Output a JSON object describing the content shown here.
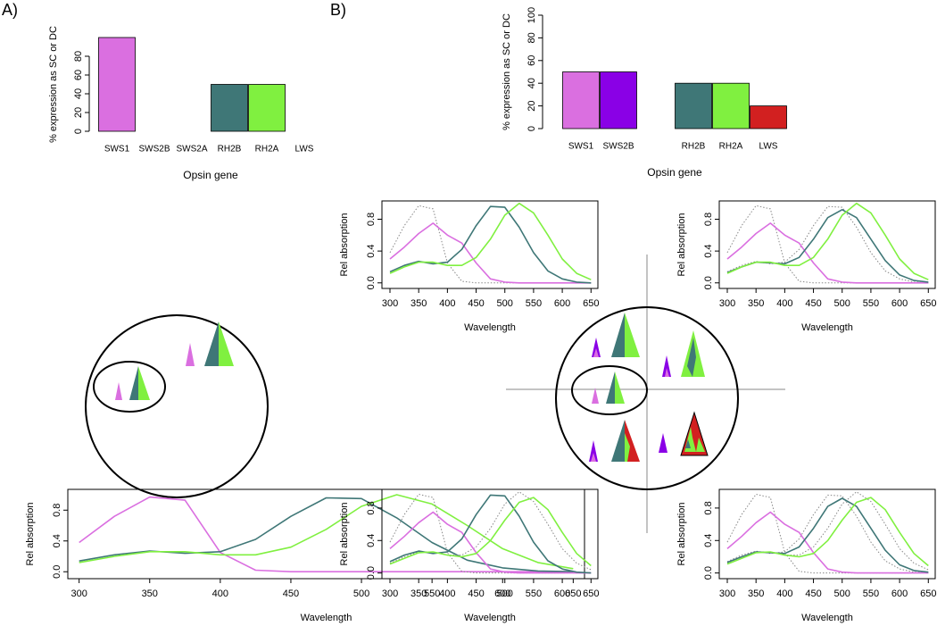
{
  "panels": [
    "A)",
    "B)"
  ],
  "chart_data": [
    {
      "type": "bar",
      "ylabel": "% expression as SC or DC",
      "xlabel": "Opsin gene",
      "categories": [
        "SWS1",
        "SWS2B",
        "SWS2A",
        "RH2B",
        "RH2A",
        "LWS"
      ],
      "values": [
        100,
        0,
        0,
        50,
        50,
        0
      ],
      "colors": [
        "#da6fe0",
        "#8a00e6",
        "#888888",
        "#3f7777",
        "#80f040",
        "#d22020"
      ],
      "ylim": [
        0,
        100
      ],
      "yticks": [
        0,
        20,
        40,
        60,
        80
      ]
    },
    {
      "type": "bar",
      "ylabel": "% expression as SC or DC",
      "xlabel": "Opsin gene",
      "categories": [
        "SWS1",
        "SWS2B",
        null,
        "RH2B",
        "RH2A",
        "LWS"
      ],
      "values": [
        50,
        50,
        0,
        40,
        40,
        20
      ],
      "colors": [
        "#da6fe0",
        "#8a00e6",
        "#888888",
        "#3f7777",
        "#80f040",
        "#d22020"
      ],
      "ylim": [
        0,
        100
      ],
      "yticks": [
        0,
        20,
        40,
        60,
        80,
        100
      ]
    },
    {
      "type": "line",
      "xlabel": "Wavelength",
      "ylabel": "Rel absorption",
      "x": [
        300,
        325,
        350,
        375,
        400,
        425,
        450,
        475,
        500,
        525,
        550,
        575,
        600,
        625,
        650
      ],
      "xlim": [
        292,
        658
      ],
      "xticks": [
        300,
        350,
        400,
        450,
        500,
        550,
        600,
        650
      ],
      "ylim": [
        -0.09,
        1.07
      ],
      "yticks": [
        {
          "value": 0,
          "label": "0.0"
        },
        0.4,
        0.8
      ],
      "series": [
        {
          "color": "#da6fe0",
          "style": "solid",
          "values": [
            0.38,
            0.72,
            0.97,
            0.93,
            0.25,
            0.02,
            0,
            0,
            0,
            0,
            0,
            0,
            0,
            0,
            0
          ]
        },
        {
          "color": "#3f7777",
          "style": "solid",
          "values": [
            0.14,
            0.22,
            0.27,
            0.24,
            0.26,
            0.42,
            0.72,
            0.96,
            0.95,
            0.7,
            0.38,
            0.15,
            0.05,
            0.01,
            0
          ]
        },
        {
          "color": "#80f040",
          "style": "solid",
          "values": [
            0.12,
            0.2,
            0.26,
            0.26,
            0.22,
            0.22,
            0.32,
            0.55,
            0.85,
            1.0,
            0.88,
            0.6,
            0.3,
            0.12,
            0.04
          ]
        }
      ]
    },
    {
      "type": "line",
      "xlabel": "Wavelength",
      "ylabel": "Rel absorption",
      "x": [
        300,
        325,
        350,
        375,
        400,
        425,
        450,
        475,
        500,
        525,
        550,
        575,
        600,
        625,
        650
      ],
      "xlim": [
        286,
        662
      ],
      "xticks": [
        300,
        350,
        400,
        450,
        500,
        550,
        600,
        650
      ],
      "ylim": [
        -0.07,
        1.03
      ],
      "yticks": [
        {
          "value": 0,
          "label": "0.0"
        },
        0.4,
        0.8
      ],
      "series": [
        {
          "color": "#888888",
          "style": "dotted",
          "values": [
            0.38,
            0.72,
            0.97,
            0.93,
            0.25,
            0.02,
            0,
            0,
            0,
            0,
            0,
            0,
            0,
            0,
            0
          ]
        },
        {
          "color": "#da6fe0",
          "style": "solid",
          "values": [
            0.3,
            0.45,
            0.62,
            0.75,
            0.6,
            0.5,
            0.25,
            0.05,
            0.01,
            0,
            0,
            0,
            0,
            0,
            0
          ]
        },
        {
          "color": "#3f7777",
          "style": "solid",
          "values": [
            0.14,
            0.22,
            0.27,
            0.24,
            0.26,
            0.42,
            0.72,
            0.96,
            0.95,
            0.7,
            0.38,
            0.15,
            0.05,
            0.01,
            0
          ]
        },
        {
          "color": "#80f040",
          "style": "solid",
          "values": [
            0.12,
            0.2,
            0.26,
            0.26,
            0.22,
            0.22,
            0.32,
            0.55,
            0.85,
            1.0,
            0.88,
            0.6,
            0.3,
            0.12,
            0.04
          ]
        }
      ]
    },
    {
      "type": "line",
      "xlabel": "Wavelength",
      "ylabel": "Rel absorption",
      "x": [
        300,
        325,
        350,
        375,
        400,
        425,
        450,
        475,
        500,
        525,
        550,
        575,
        600,
        625,
        650
      ],
      "xlim": [
        286,
        662
      ],
      "xticks": [
        300,
        350,
        400,
        450,
        500,
        550,
        600,
        650
      ],
      "ylim": [
        -0.07,
        1.03
      ],
      "yticks": [
        {
          "value": 0,
          "label": "0.0"
        },
        0.4,
        0.8
      ],
      "series": [
        {
          "color": "#888888",
          "style": "dotted",
          "values": [
            0.38,
            0.72,
            0.97,
            0.93,
            0.25,
            0.02,
            0,
            0,
            0,
            0,
            0,
            0,
            0,
            0,
            0
          ]
        },
        {
          "color": "#888888",
          "style": "dotted",
          "values": [
            0.14,
            0.22,
            0.27,
            0.24,
            0.26,
            0.42,
            0.72,
            0.96,
            0.95,
            0.7,
            0.38,
            0.15,
            0.05,
            0.01,
            0
          ]
        },
        {
          "color": "#da6fe0",
          "style": "solid",
          "values": [
            0.3,
            0.45,
            0.62,
            0.75,
            0.6,
            0.5,
            0.25,
            0.05,
            0.01,
            0,
            0,
            0,
            0,
            0,
            0
          ]
        },
        {
          "color": "#3f7777",
          "style": "solid",
          "values": [
            0.13,
            0.2,
            0.26,
            0.25,
            0.24,
            0.32,
            0.55,
            0.82,
            0.92,
            0.82,
            0.55,
            0.28,
            0.1,
            0.03,
            0.01
          ]
        },
        {
          "color": "#80f040",
          "style": "solid",
          "values": [
            0.12,
            0.2,
            0.26,
            0.26,
            0.22,
            0.22,
            0.32,
            0.55,
            0.85,
            1.0,
            0.88,
            0.6,
            0.3,
            0.12,
            0.04
          ]
        }
      ]
    },
    {
      "type": "line",
      "xlabel": "Wavelength",
      "ylabel": "Rel absorption",
      "x": [
        300,
        325,
        350,
        375,
        400,
        425,
        450,
        475,
        500,
        525,
        550,
        575,
        600,
        625,
        650
      ],
      "xlim": [
        286,
        662
      ],
      "xticks": [
        300,
        350,
        400,
        450,
        500,
        550,
        600,
        650
      ],
      "ylim": [
        -0.07,
        1.03
      ],
      "yticks": [
        {
          "value": 0,
          "label": "0.0"
        },
        0.4,
        0.8
      ],
      "series": [
        {
          "color": "#888888",
          "style": "dotted",
          "values": [
            0.38,
            0.72,
            0.97,
            0.93,
            0.25,
            0.02,
            0,
            0,
            0,
            0,
            0,
            0,
            0,
            0,
            0
          ]
        },
        {
          "color": "#888888",
          "style": "dotted",
          "values": [
            0.12,
            0.2,
            0.26,
            0.26,
            0.22,
            0.22,
            0.32,
            0.55,
            0.85,
            1.0,
            0.88,
            0.6,
            0.3,
            0.12,
            0.04
          ]
        },
        {
          "color": "#da6fe0",
          "style": "solid",
          "values": [
            0.3,
            0.45,
            0.62,
            0.75,
            0.6,
            0.5,
            0.25,
            0.05,
            0.01,
            0,
            0,
            0,
            0,
            0,
            0
          ]
        },
        {
          "color": "#3f7777",
          "style": "solid",
          "values": [
            0.14,
            0.22,
            0.27,
            0.24,
            0.26,
            0.42,
            0.72,
            0.96,
            0.95,
            0.7,
            0.38,
            0.15,
            0.05,
            0.01,
            0
          ]
        },
        {
          "color": "#80f040",
          "style": "solid",
          "values": [
            0.11,
            0.18,
            0.25,
            0.26,
            0.22,
            0.2,
            0.24,
            0.4,
            0.65,
            0.87,
            0.93,
            0.78,
            0.5,
            0.24,
            0.09
          ]
        }
      ]
    },
    {
      "type": "line",
      "xlabel": "Wavelength",
      "ylabel": "Rel absorption",
      "x": [
        300,
        325,
        350,
        375,
        400,
        425,
        450,
        475,
        500,
        525,
        550,
        575,
        600,
        625,
        650
      ],
      "xlim": [
        286,
        662
      ],
      "xticks": [
        300,
        350,
        400,
        450,
        500,
        550,
        600,
        650
      ],
      "ylim": [
        -0.07,
        1.03
      ],
      "yticks": [
        {
          "value": 0,
          "label": "0.0"
        },
        0.4,
        0.8
      ],
      "series": [
        {
          "color": "#888888",
          "style": "dotted",
          "values": [
            0.38,
            0.72,
            0.97,
            0.93,
            0.25,
            0.02,
            0,
            0,
            0,
            0,
            0,
            0,
            0,
            0,
            0
          ]
        },
        {
          "color": "#888888",
          "style": "dotted",
          "values": [
            0.14,
            0.22,
            0.27,
            0.24,
            0.26,
            0.42,
            0.72,
            0.96,
            0.95,
            0.7,
            0.38,
            0.15,
            0.05,
            0.01,
            0
          ]
        },
        {
          "color": "#888888",
          "style": "dotted",
          "values": [
            0.12,
            0.2,
            0.26,
            0.26,
            0.22,
            0.22,
            0.32,
            0.55,
            0.85,
            1.0,
            0.88,
            0.6,
            0.3,
            0.12,
            0.04
          ]
        },
        {
          "color": "#da6fe0",
          "style": "solid",
          "values": [
            0.3,
            0.45,
            0.62,
            0.75,
            0.6,
            0.5,
            0.25,
            0.05,
            0.01,
            0,
            0,
            0,
            0,
            0,
            0
          ]
        },
        {
          "color": "#3f7777",
          "style": "solid",
          "values": [
            0.13,
            0.2,
            0.26,
            0.25,
            0.24,
            0.32,
            0.55,
            0.82,
            0.92,
            0.82,
            0.55,
            0.28,
            0.1,
            0.03,
            0.01
          ]
        },
        {
          "color": "#80f040",
          "style": "solid",
          "values": [
            0.11,
            0.18,
            0.25,
            0.26,
            0.22,
            0.2,
            0.24,
            0.4,
            0.65,
            0.87,
            0.93,
            0.78,
            0.5,
            0.24,
            0.09
          ]
        }
      ]
    }
  ]
}
